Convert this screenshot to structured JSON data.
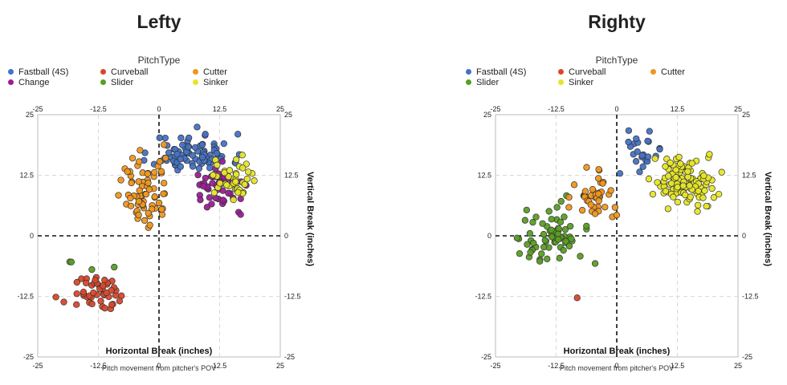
{
  "chart_data": [
    {
      "type": "scatter",
      "title": "Lefty",
      "legend_title": "PitchType",
      "xlabel": "Horizontal Break (inches)",
      "ylabel": "Vertical Break (inches)",
      "caption": "Pitch movement from pitcher's POV",
      "xlim": [
        -25,
        25
      ],
      "ylim": [
        -25,
        25
      ],
      "ticks": [
        "-25",
        "-12.5",
        "0",
        "12.5",
        "25"
      ],
      "grid": true,
      "series": [
        {
          "name": "Fastball (4S)",
          "color": "#4472c4",
          "center": [
            7,
            17
          ],
          "spread": [
            4,
            2
          ],
          "count": 85,
          "seed": 11
        },
        {
          "name": "Curveball",
          "color": "#d9472b",
          "center": [
            -12,
            -12
          ],
          "spread": [
            3,
            1.8
          ],
          "count": 48,
          "seed": 21
        },
        {
          "name": "Cutter",
          "color": "#f0961c",
          "center": [
            -3,
            9
          ],
          "spread": [
            2.5,
            4
          ],
          "count": 70,
          "seed": 31
        },
        {
          "name": "Change",
          "color": "#9b1d96",
          "center": [
            13,
            10
          ],
          "spread": [
            3,
            2.2
          ],
          "count": 48,
          "seed": 41
        },
        {
          "name": "Slider",
          "color": "#5a9e23",
          "center": [
            -14,
            -5
          ],
          "spread": [
            3.5,
            2
          ],
          "count": 4,
          "seed": 51
        },
        {
          "name": "Sinker",
          "color": "#e6e628",
          "center": [
            15,
            12
          ],
          "spread": [
            2.5,
            2.5
          ],
          "count": 42,
          "seed": 61
        }
      ]
    },
    {
      "type": "scatter",
      "title": "Righty",
      "legend_title": "PitchType",
      "xlabel": "Horizontal Break (inches)",
      "ylabel": "Vertical Break (inches)",
      "caption": "Pitch movement from pitcher's POV",
      "xlim": [
        -25,
        25
      ],
      "ylim": [
        -25,
        25
      ],
      "ticks": [
        "-25",
        "-12.5",
        "0",
        "12.5",
        "25"
      ],
      "grid": true,
      "series": [
        {
          "name": "Fastball (4S)",
          "color": "#4472c4",
          "center": [
            6,
            17
          ],
          "spread": [
            2.5,
            2
          ],
          "count": 24,
          "seed": 71
        },
        {
          "name": "Slider",
          "color": "#5a9e23",
          "center": [
            -14,
            0
          ],
          "spread": [
            3,
            3.5
          ],
          "count": 70,
          "seed": 81
        },
        {
          "name": "Curveball",
          "color": "#d9472b",
          "center": [
            -8,
            -13
          ],
          "spread": [
            0.1,
            0.1
          ],
          "count": 1,
          "seed": 91
        },
        {
          "name": "Sinker",
          "color": "#e6e628",
          "center": [
            14,
            11
          ],
          "spread": [
            3,
            2.5
          ],
          "count": 120,
          "seed": 101
        },
        {
          "name": "Cutter",
          "color": "#f0961c",
          "center": [
            -5,
            8
          ],
          "spread": [
            2,
            3
          ],
          "count": 45,
          "seed": 111
        }
      ]
    }
  ]
}
